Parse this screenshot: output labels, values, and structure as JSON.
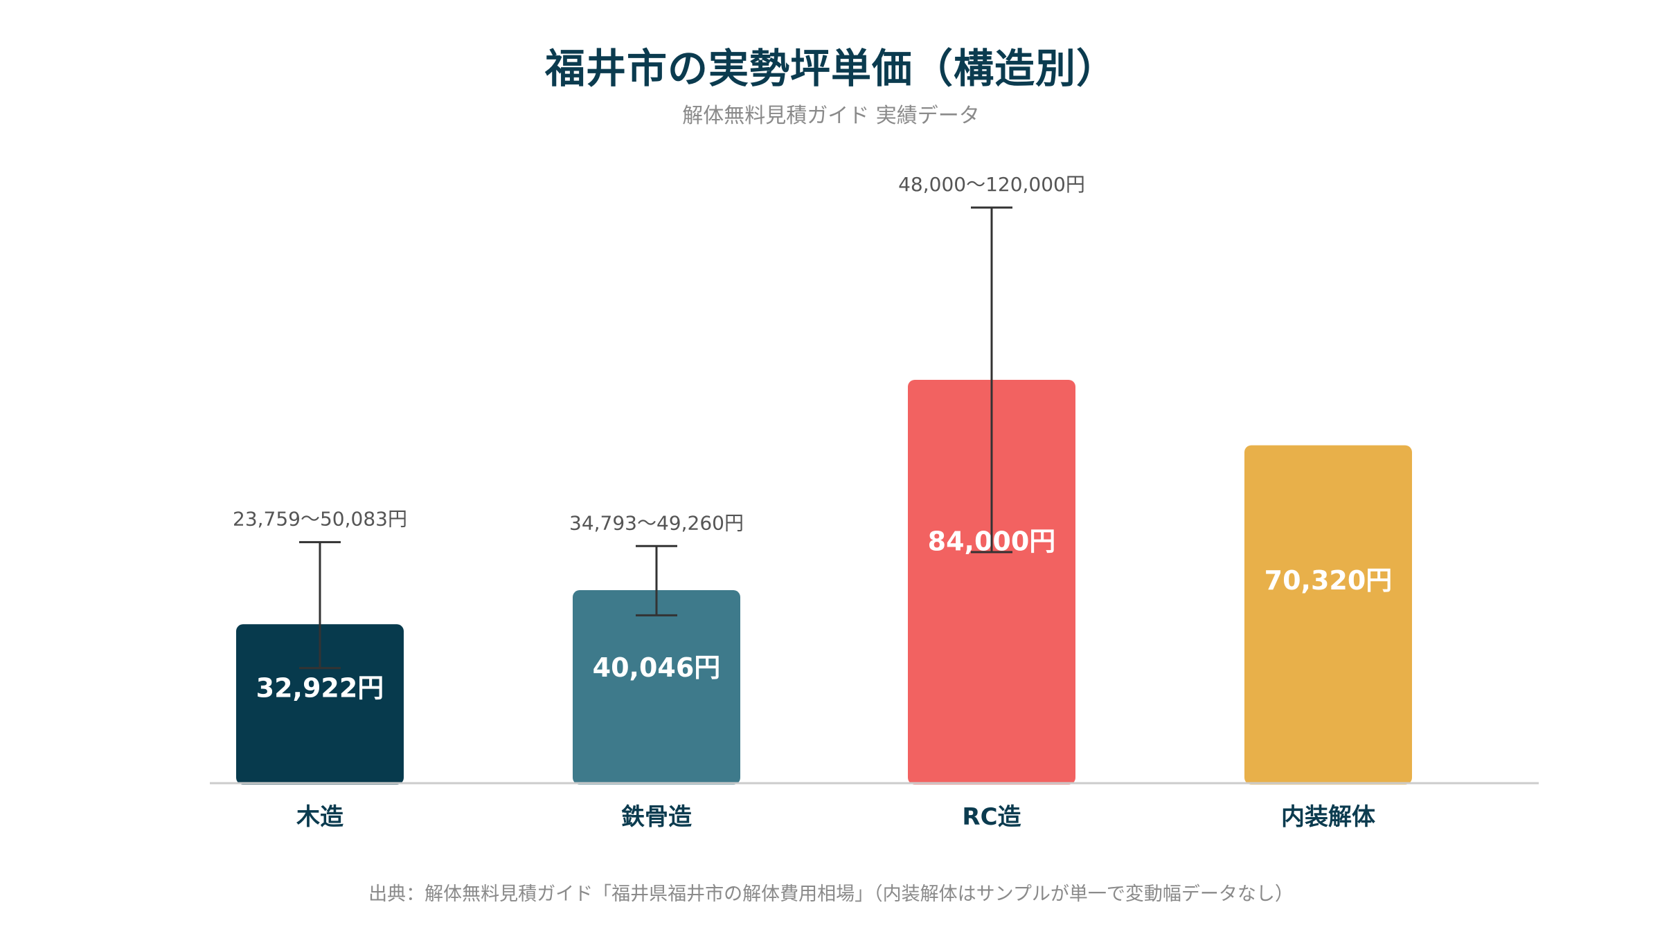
{
  "title": "福井市の実勢坪単価（構造別）",
  "subtitle": "解体無料見積ガイド 実績データ",
  "source": "出典：解体無料見積ガイド「福井県福井市の解体費用相場」（内装解体はサンプルが単一で変動幅データなし）",
  "chart_data": {
    "type": "bar",
    "categories": [
      "木造",
      "鉄骨造",
      "RC造",
      "内装解体"
    ],
    "values": [
      32922,
      40046,
      84000,
      70320
    ],
    "value_labels": [
      "32,922円",
      "40,046円",
      "84,000円",
      "70,320円"
    ],
    "ranges": [
      [
        23759,
        50083
      ],
      [
        34793,
        49260
      ],
      [
        48000,
        120000
      ],
      null
    ],
    "range_labels": [
      "23,759〜50,083円",
      "34,793〜49,260円",
      "48,000〜120,000円",
      ""
    ],
    "colors": [
      "#073a4d",
      "#3e7a8b",
      "#f26261",
      "#e8b04a"
    ],
    "error_bar_color": "#333333",
    "axis_color": "#cccccc",
    "label_color": "#0b3b4f",
    "range_label_color": "#555555",
    "ylim": [
      0,
      120000
    ],
    "grid": false,
    "legend": "none"
  }
}
